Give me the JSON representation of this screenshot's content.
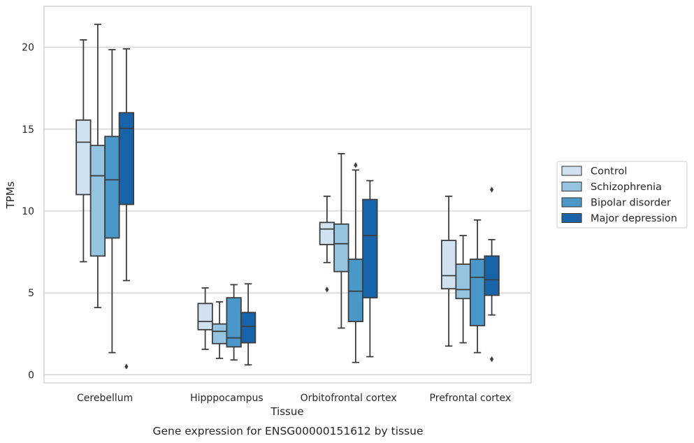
{
  "chart_data": {
    "type": "boxplot",
    "caption": "Gene expression for ENSG00000151612 by tissue",
    "xlabel": "Tissue",
    "ylabel": "TPMs",
    "ylim": [
      -0.5,
      22.5
    ],
    "yticks": [
      0,
      5,
      10,
      15,
      20
    ],
    "grid": true,
    "legend_position": "right",
    "categories": [
      "Cerebellum",
      "Hipppocampus",
      "Orbitofrontal cortex",
      "Prefrontal cortex"
    ],
    "series": [
      {
        "name": "Control",
        "color": "#d0e1f2",
        "boxes": [
          {
            "whislo": 6.9,
            "q1": 11.0,
            "med": 14.2,
            "q3": 15.55,
            "whishi": 20.45,
            "fliers": []
          },
          {
            "whislo": 1.55,
            "q1": 2.75,
            "med": 3.25,
            "q3": 4.35,
            "whishi": 5.3,
            "fliers": []
          },
          {
            "whislo": 6.85,
            "q1": 7.95,
            "med": 8.9,
            "q3": 9.3,
            "whishi": 10.9,
            "fliers": [
              5.2
            ]
          },
          {
            "whislo": 1.75,
            "q1": 5.25,
            "med": 6.05,
            "q3": 8.2,
            "whishi": 10.9,
            "fliers": []
          }
        ]
      },
      {
        "name": "Schizophrenia",
        "color": "#94c4df",
        "boxes": [
          {
            "whislo": 4.1,
            "q1": 7.25,
            "med": 12.15,
            "q3": 14.0,
            "whishi": 21.4,
            "fliers": []
          },
          {
            "whislo": 1.0,
            "q1": 1.9,
            "med": 2.65,
            "q3": 3.1,
            "whishi": 4.45,
            "fliers": []
          },
          {
            "whislo": 2.85,
            "q1": 6.3,
            "med": 8.0,
            "q3": 9.2,
            "whishi": 13.5,
            "fliers": []
          },
          {
            "whislo": 1.95,
            "q1": 4.65,
            "med": 5.2,
            "q3": 6.75,
            "whishi": 8.5,
            "fliers": []
          }
        ]
      },
      {
        "name": "Bipolar disorder",
        "color": "#4a98c9",
        "boxes": [
          {
            "whislo": 1.35,
            "q1": 8.35,
            "med": 11.9,
            "q3": 14.55,
            "whishi": 19.85,
            "fliers": []
          },
          {
            "whislo": 0.9,
            "q1": 1.7,
            "med": 2.25,
            "q3": 4.7,
            "whishi": 5.5,
            "fliers": []
          },
          {
            "whislo": 0.75,
            "q1": 3.25,
            "med": 5.1,
            "q3": 7.05,
            "whishi": 12.5,
            "fliers": [
              12.8
            ]
          },
          {
            "whislo": 1.35,
            "q1": 3.0,
            "med": 5.95,
            "q3": 7.05,
            "whishi": 9.45,
            "fliers": []
          }
        ]
      },
      {
        "name": "Major depression",
        "color": "#1764ab",
        "boxes": [
          {
            "whislo": 5.75,
            "q1": 10.4,
            "med": 15.05,
            "q3": 16.0,
            "whishi": 19.9,
            "fliers": [
              0.5
            ]
          },
          {
            "whislo": 0.6,
            "q1": 1.95,
            "med": 2.95,
            "q3": 3.8,
            "whishi": 5.55,
            "fliers": []
          },
          {
            "whislo": 1.1,
            "q1": 4.7,
            "med": 8.5,
            "q3": 10.7,
            "whishi": 11.85,
            "fliers": []
          },
          {
            "whislo": 3.65,
            "q1": 4.85,
            "med": 5.8,
            "q3": 7.25,
            "whishi": 8.25,
            "fliers": [
              11.3,
              0.95
            ]
          }
        ]
      }
    ]
  }
}
